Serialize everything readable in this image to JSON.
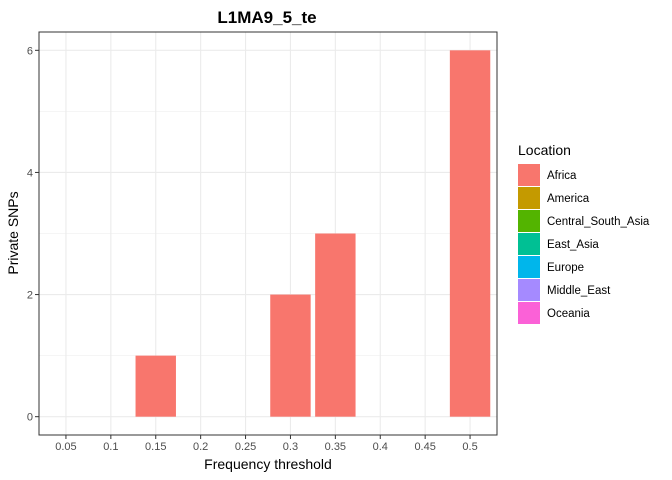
{
  "chart_data": {
    "type": "bar",
    "title": "L1MA9_5_te",
    "xlabel": "Frequency threshold",
    "ylabel": "Private SNPs",
    "categories": [
      "0.05",
      "0.1",
      "0.15",
      "0.2",
      "0.25",
      "0.3",
      "0.35",
      "0.4",
      "0.45",
      "0.5"
    ],
    "series": [
      {
        "name": "Africa",
        "color": "#F8766D",
        "values": [
          0,
          0,
          1,
          0,
          0,
          2,
          3,
          0,
          0,
          6
        ]
      }
    ],
    "ylim": [
      0,
      6
    ],
    "yticks": [
      "0",
      "2",
      "4",
      "6"
    ],
    "grid": true,
    "theme": "bw",
    "legend": {
      "title": "Location",
      "position": "right",
      "items": [
        {
          "label": "Africa",
          "color": "#F8766D"
        },
        {
          "label": "America",
          "color": "#C49A00"
        },
        {
          "label": "Central_South_Asia",
          "color": "#53B400"
        },
        {
          "label": "East_Asia",
          "color": "#00C094"
        },
        {
          "label": "Europe",
          "color": "#00B6EB"
        },
        {
          "label": "Middle_East",
          "color": "#A58AFF"
        },
        {
          "label": "Oceania",
          "color": "#FB61D7"
        }
      ]
    }
  }
}
